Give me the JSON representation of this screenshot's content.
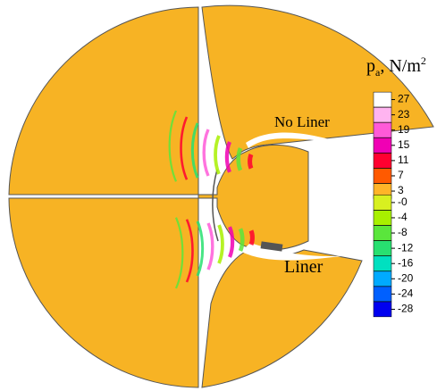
{
  "labels": {
    "upper": "No Liner",
    "lower": "Liner"
  },
  "chart_data": {
    "type": "contour",
    "colorbar_title": {
      "symbol": "p",
      "subscript": "a",
      "unit": ", N/m",
      "superscript": "2"
    },
    "levels": [
      27,
      23,
      19,
      15,
      11,
      7,
      3,
      {
        "value": 0,
        "label": "-0"
      },
      -4,
      -8,
      -12,
      -16,
      -20,
      -24,
      -28
    ],
    "colors": [
      "#ffffff",
      "#ffb4f0",
      "#ff5ad8",
      "#f000b4",
      "#ff0030",
      "#ff5a00",
      "#ffb428",
      "#d8f020",
      "#a8f000",
      "#5ae63c",
      "#28e070",
      "#00e0c0",
      "#00aaff",
      "#0060ff",
      "#0000f0"
    ],
    "lim": [
      -30,
      29
    ]
  }
}
